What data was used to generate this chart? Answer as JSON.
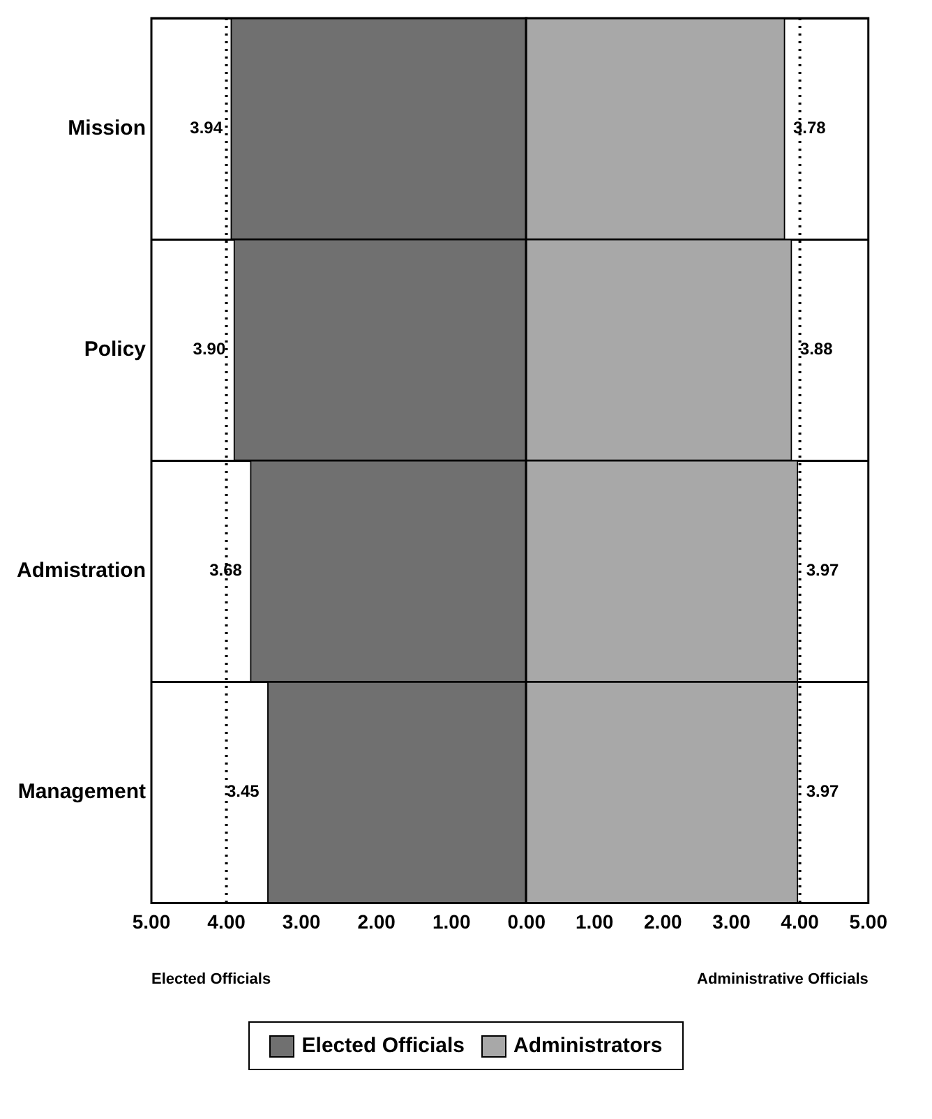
{
  "chart_data": [
    {
      "type": "bar",
      "orientation": "horizontal",
      "categories": [
        "Mission",
        "Policy",
        "Admistration",
        "Management"
      ],
      "series": [
        {
          "name": "Elected Officials",
          "color": "#707070",
          "values": [
            3.94,
            3.9,
            3.68,
            3.45
          ],
          "value_labels": [
            "3.94",
            "3.90",
            "3.68",
            "3.45"
          ]
        }
      ],
      "xlim": [
        5,
        0
      ],
      "xticks": [
        {
          "value": 5,
          "label": "5.00"
        },
        {
          "value": 4,
          "label": "4.00"
        },
        {
          "value": 3,
          "label": "3.00"
        },
        {
          "value": 2,
          "label": "2.00"
        },
        {
          "value": 1,
          "label": "1.00"
        },
        {
          "value": 0,
          "label": "0.00"
        }
      ],
      "ref_lines": [
        {
          "axis": "x",
          "value": 4,
          "line_style": "dotted",
          "color": "#000000"
        }
      ],
      "annotations": [
        "Elected Officials"
      ],
      "grid": "y",
      "legend": "bottom"
    },
    {
      "type": "bar",
      "orientation": "horizontal",
      "categories": [
        null,
        null,
        null,
        null
      ],
      "series": [
        {
          "name": "Administrators",
          "color": "#a8a8a8",
          "values": [
            3.78,
            3.88,
            3.97,
            3.97
          ],
          "value_labels": [
            "3.78",
            "3.88",
            "3.97",
            "3.97"
          ]
        }
      ],
      "xlim": [
        0,
        5
      ],
      "xticks": [
        {
          "value": 0,
          "label": null
        },
        {
          "value": 1,
          "label": "1.00"
        },
        {
          "value": 2,
          "label": "2.00"
        },
        {
          "value": 3,
          "label": "3.00"
        },
        {
          "value": 4,
          "label": "4.00"
        },
        {
          "value": 5,
          "label": "5.00"
        }
      ],
      "ref_lines": [
        {
          "axis": "x",
          "value": 4,
          "line_style": "dotted",
          "color": "#000000"
        }
      ],
      "annotations": [
        "Administrative Officials"
      ],
      "tick_labels": "x",
      "grid": "y",
      "legend": "bottom"
    }
  ]
}
